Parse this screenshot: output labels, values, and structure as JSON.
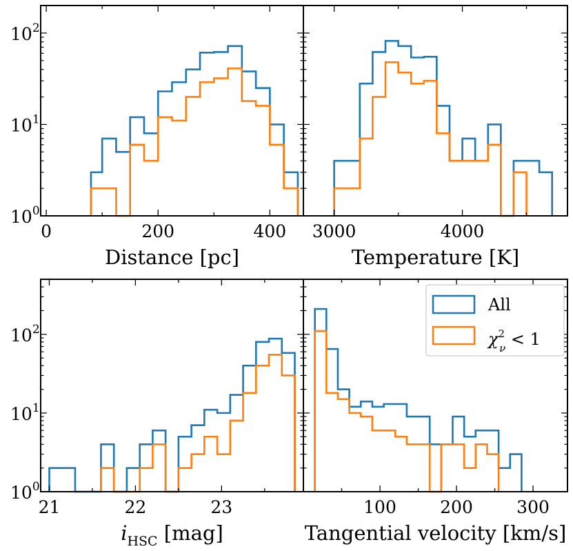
{
  "colors": {
    "all": "#1f77b4",
    "good_fit": "#ff7f0e",
    "axes": "#000000",
    "legend_border": "#cccccc"
  },
  "legend": {
    "location": "upper right of bottom-right panel",
    "entries": [
      {
        "key": "all",
        "label": "All"
      },
      {
        "key": "good_fit",
        "label": "χ²ν < 1"
      }
    ]
  },
  "chart_data": [
    {
      "type": "histogram",
      "xlabel": "Distance [pc]",
      "xlim": [
        -10,
        460
      ],
      "xticks": [
        0,
        200,
        400
      ],
      "xtick_labels": [
        "0",
        "200",
        "400"
      ],
      "minor_xticks": [
        100,
        300
      ],
      "yscale": "log",
      "ylim": [
        1,
        200
      ],
      "yticks": [
        1,
        10,
        100
      ],
      "ytick_labels": [
        "10⁰",
        "10¹",
        "10²"
      ],
      "yticks_labeled": true,
      "series": [
        {
          "name": "All",
          "color_key": "all",
          "edges": [
            80,
            100,
            125,
            150,
            175,
            200,
            225,
            250,
            275,
            300,
            325,
            350,
            375,
            400,
            425,
            450
          ],
          "counts": [
            3,
            7,
            5,
            12,
            8,
            23,
            29,
            40,
            61,
            62,
            72,
            38,
            25,
            10,
            3
          ]
        },
        {
          "name": "χ²ν < 1",
          "color_key": "good_fit",
          "edges": [
            80,
            100,
            125,
            150,
            175,
            200,
            225,
            250,
            275,
            300,
            325,
            350,
            375,
            400,
            425,
            450
          ],
          "counts": [
            2,
            2,
            1,
            6,
            4,
            12,
            11,
            20,
            29,
            32,
            41,
            18,
            16,
            6,
            2
          ]
        }
      ]
    },
    {
      "type": "histogram",
      "xlabel": "Temperature [K]",
      "xlim": [
        2760,
        4820
      ],
      "xticks": [
        3000,
        4000
      ],
      "xtick_labels": [
        "3000",
        "4000"
      ],
      "minor_xticks": [
        3500,
        4500
      ],
      "yscale": "log",
      "ylim": [
        1,
        200
      ],
      "yticks": [
        1,
        10,
        100
      ],
      "yticks_labeled": false,
      "series": [
        {
          "name": "All",
          "color_key": "all",
          "edges": [
            3000,
            3200,
            3300,
            3400,
            3500,
            3600,
            3700,
            3800,
            3900,
            4000,
            4100,
            4200,
            4300,
            4400,
            4500,
            4600,
            4700
          ],
          "counts": [
            4,
            28,
            62,
            82,
            72,
            54,
            55,
            16,
            4,
            7,
            4,
            10,
            1,
            4,
            4,
            3
          ]
        },
        {
          "name": "χ²ν < 1",
          "color_key": "good_fit",
          "edges": [
            3000,
            3200,
            3300,
            3400,
            3500,
            3600,
            3700,
            3800,
            3900,
            4000,
            4100,
            4200,
            4300,
            4400,
            4500
          ],
          "counts": [
            2,
            7,
            20,
            48,
            37,
            28,
            30,
            8,
            4,
            4,
            4,
            6,
            1,
            3
          ]
        }
      ]
    },
    {
      "type": "histogram",
      "xlabel": "iHSC [mag]",
      "xlim": [
        20.9,
        23.95
      ],
      "xticks": [
        21,
        22,
        23
      ],
      "xtick_labels": [
        "21",
        "22",
        "23"
      ],
      "minor_xticks": [
        21.5,
        22.5,
        23.5
      ],
      "yscale": "log",
      "ylim": [
        1,
        500
      ],
      "yticks": [
        1,
        10,
        100
      ],
      "ytick_labels": [
        "10⁰",
        "10¹",
        "10²"
      ],
      "yticks_labeled": true,
      "series": [
        {
          "name": "All",
          "color_key": "all",
          "edges": [
            21.0,
            21.3,
            21.6,
            21.75,
            21.9,
            22.05,
            22.2,
            22.35,
            22.5,
            22.65,
            22.8,
            22.95,
            23.1,
            23.25,
            23.4,
            23.55,
            23.7,
            23.85
          ],
          "counts": [
            2,
            1,
            4,
            1,
            2,
            4,
            6,
            1,
            5,
            7,
            11,
            10,
            17,
            40,
            80,
            88,
            58
          ]
        },
        {
          "name": "χ²ν < 1",
          "color_key": "good_fit",
          "edges": [
            21.6,
            21.75,
            21.9,
            22.05,
            22.2,
            22.35,
            22.5,
            22.65,
            22.8,
            22.95,
            23.1,
            23.25,
            23.4,
            23.55,
            23.7,
            23.85
          ],
          "counts": [
            2,
            1,
            1,
            2,
            4,
            1,
            2,
            3,
            5,
            3,
            8,
            18,
            40,
            55,
            30
          ]
        }
      ]
    },
    {
      "type": "histogram",
      "xlabel": "Tangential velocity [km/s]",
      "xlim": [
        0,
        345
      ],
      "xticks": [
        100,
        200,
        300
      ],
      "xtick_labels": [
        "100",
        "200",
        "300"
      ],
      "minor_xticks": [
        50,
        150,
        250
      ],
      "yscale": "log",
      "ylim": [
        1,
        500
      ],
      "yticks": [
        1,
        10,
        100
      ],
      "yticks_labeled": false,
      "series": [
        {
          "name": "All",
          "color_key": "all",
          "edges": [
            15,
            30,
            45,
            60,
            75,
            90,
            105,
            120,
            135,
            150,
            165,
            180,
            195,
            210,
            225,
            240,
            255,
            270,
            285
          ],
          "counts": [
            210,
            65,
            20,
            12,
            14,
            12,
            13,
            13,
            9,
            9,
            4,
            4,
            9,
            5,
            6,
            6,
            2,
            3
          ]
        },
        {
          "name": "χ²ν < 1",
          "color_key": "good_fit",
          "edges": [
            15,
            30,
            45,
            60,
            75,
            90,
            105,
            120,
            135,
            150,
            165,
            180,
            195,
            210,
            225,
            240,
            255
          ],
          "counts": [
            110,
            18,
            15,
            10,
            9,
            6,
            6,
            5,
            4,
            4,
            1,
            4,
            4,
            2,
            4,
            3
          ]
        }
      ]
    }
  ]
}
